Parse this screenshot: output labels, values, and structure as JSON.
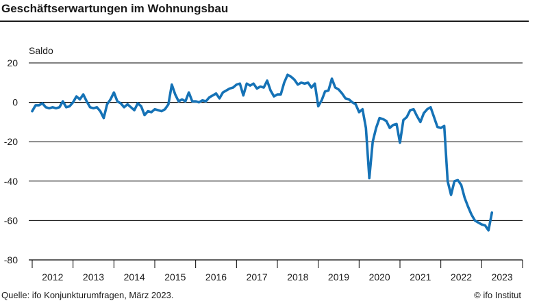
{
  "header": {
    "title": "Geschäftserwartungen im Wohnungsbau"
  },
  "footer": {
    "source": "Quelle: ifo Konjunkturumfragen, März 2023.",
    "credit": "© ifo Institut"
  },
  "colors": {
    "line": "#1572b6",
    "grid": "#000000",
    "text": "#1a1a1a"
  },
  "chart_data": {
    "type": "line",
    "title": "Geschäftserwartungen im Wohnungsbau",
    "ylabel": "Saldo",
    "xlabel": "",
    "ylim": [
      -80,
      20
    ],
    "yticks": [
      "20",
      "0",
      "-20",
      "-40",
      "-60",
      "-80"
    ],
    "ytick_values": [
      20,
      0,
      -20,
      -40,
      -60,
      -80
    ],
    "xticks": [
      "2012",
      "2013",
      "2014",
      "2015",
      "2016",
      "2017",
      "2018",
      "2019",
      "2020",
      "2021",
      "2022",
      "2023"
    ],
    "x_start_year": 2012,
    "x_end_year": 2024,
    "grid": true,
    "series": [
      {
        "name": "Geschäftserwartungen im Wohnungsbau",
        "x_start": "2012-01",
        "frequency": "monthly",
        "values": [
          -4.5,
          -1.5,
          -1.5,
          -0.5,
          -2.5,
          -3,
          -2.5,
          -3,
          -2.5,
          0.5,
          -2.5,
          -2,
          0,
          3,
          1.5,
          4,
          0.5,
          -2.5,
          -3,
          -2.5,
          -4.5,
          -8,
          -1,
          1.5,
          5,
          0.5,
          -0.5,
          -2.5,
          -1,
          -2.5,
          -4,
          -0.5,
          -2,
          -6.5,
          -4.5,
          -5,
          -3.5,
          -4,
          -4.5,
          -3.5,
          -1,
          9,
          4,
          0.5,
          1.5,
          0.5,
          5,
          0.5,
          0.5,
          0,
          1,
          0.5,
          2.5,
          3.5,
          4.5,
          2,
          5,
          6,
          7,
          7.5,
          9,
          9.5,
          3.5,
          9.5,
          8.5,
          9.5,
          7,
          8,
          7.5,
          11,
          6,
          3,
          4,
          4,
          10,
          14,
          13,
          11.5,
          9,
          10,
          9.5,
          10,
          7.5,
          9.5,
          -2,
          1,
          5.5,
          6,
          12,
          7.5,
          6.5,
          4.5,
          2,
          1.5,
          0,
          -1,
          -5,
          -3.5,
          -13,
          -38.5,
          -20,
          -13,
          -8,
          -8.5,
          -9.5,
          -13,
          -11.5,
          -11,
          -20.5,
          -9,
          -7.5,
          -4,
          -3.5,
          -7,
          -10,
          -5.5,
          -3.5,
          -2.5,
          -7.5,
          -12.5,
          -13,
          -12,
          -40,
          -47,
          -40,
          -39.5,
          -42,
          -48.5,
          -53,
          -57,
          -60,
          -61,
          -62,
          -62.5,
          -65,
          -56
        ]
      }
    ]
  }
}
